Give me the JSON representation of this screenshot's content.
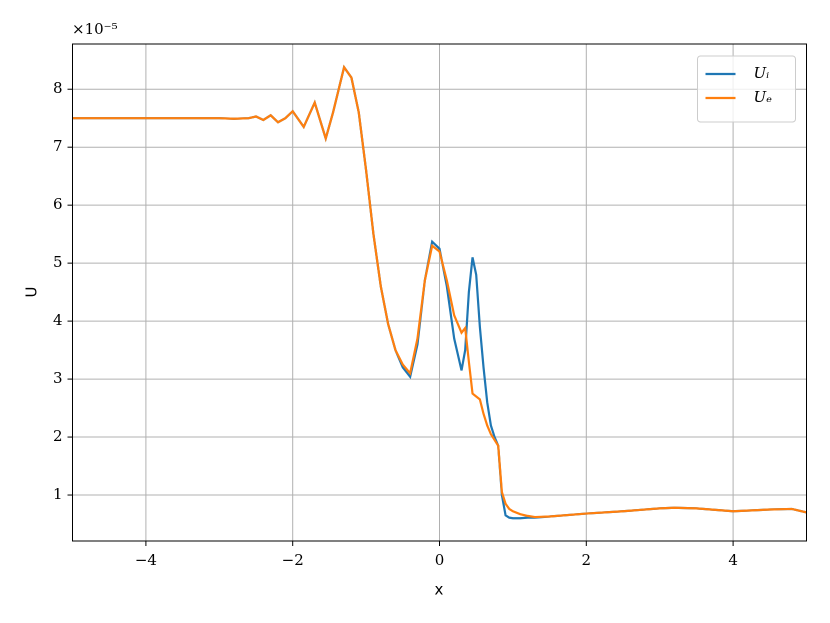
{
  "chart_data": {
    "type": "line",
    "xlabel": "x",
    "ylabel": "U",
    "y_offset_label": "×10⁻⁵",
    "x": [
      -5,
      -4,
      -3,
      -2.8,
      -2.6,
      -2.5,
      -2.4,
      -2.3,
      -2.2,
      -2.1,
      -2.0,
      -1.85,
      -1.7,
      -1.55,
      -1.45,
      -1.3,
      -1.2,
      -1.1,
      -1.0,
      -0.9,
      -0.8,
      -0.7,
      -0.6,
      -0.5,
      -0.4,
      -0.3,
      -0.2,
      -0.1,
      0,
      0.1,
      0.2,
      0.3,
      0.35,
      0.4,
      0.45,
      0.5,
      0.55,
      0.6,
      0.65,
      0.7,
      0.75,
      0.8,
      0.85,
      0.9,
      0.95,
      1.0,
      1.1,
      1.2,
      1.3,
      1.5,
      2,
      2.5,
      3,
      3.2,
      3.5,
      4,
      4.5,
      4.8,
      5
    ],
    "series": [
      {
        "name": "Uᵢ",
        "color": "#1f77b4",
        "values": [
          7.5,
          7.5,
          7.5,
          7.49,
          7.5,
          7.53,
          7.47,
          7.55,
          7.43,
          7.5,
          7.62,
          7.35,
          7.77,
          7.15,
          7.6,
          8.38,
          8.2,
          7.6,
          6.6,
          5.5,
          4.6,
          3.95,
          3.5,
          3.2,
          3.04,
          3.6,
          4.7,
          5.37,
          5.25,
          4.6,
          3.7,
          3.15,
          3.5,
          4.5,
          5.1,
          4.8,
          3.9,
          3.2,
          2.6,
          2.2,
          2.0,
          1.85,
          1.0,
          0.65,
          0.61,
          0.6,
          0.6,
          0.61,
          0.61,
          0.63,
          0.68,
          0.72,
          0.77,
          0.78,
          0.77,
          0.72,
          0.75,
          0.76,
          0.7
        ]
      },
      {
        "name": "Uₑ",
        "color": "#ff7f0e",
        "values": [
          7.5,
          7.5,
          7.5,
          7.49,
          7.5,
          7.53,
          7.47,
          7.55,
          7.43,
          7.5,
          7.62,
          7.35,
          7.77,
          7.15,
          7.6,
          8.38,
          8.2,
          7.6,
          6.6,
          5.5,
          4.6,
          3.95,
          3.5,
          3.25,
          3.1,
          3.7,
          4.7,
          5.3,
          5.2,
          4.7,
          4.1,
          3.8,
          3.88,
          3.3,
          2.75,
          2.7,
          2.65,
          2.4,
          2.2,
          2.05,
          1.95,
          1.85,
          1.05,
          0.85,
          0.76,
          0.72,
          0.67,
          0.64,
          0.62,
          0.63,
          0.68,
          0.72,
          0.77,
          0.78,
          0.77,
          0.72,
          0.75,
          0.76,
          0.7
        ]
      }
    ],
    "xlim": [
      -5,
      5
    ],
    "xticks": [
      {
        "value": -4,
        "label": "−4"
      },
      {
        "value": -2,
        "label": "−2"
      },
      0,
      2,
      4
    ],
    "ylim": [
      0.207,
      8.78
    ],
    "yticks": [
      1,
      2,
      3,
      4,
      5,
      6,
      7,
      8
    ],
    "grid": true,
    "legend": "upper right"
  }
}
